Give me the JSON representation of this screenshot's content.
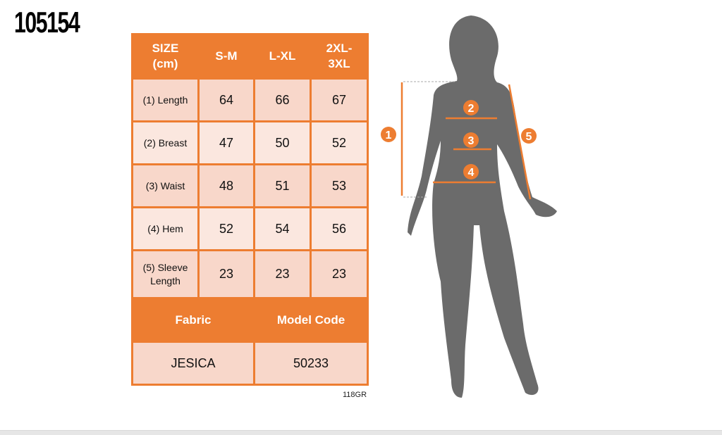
{
  "product_code": "105154",
  "table": {
    "headers": [
      "SIZE (cm)",
      "S-M",
      "L-XL",
      "2XL-3XL"
    ],
    "rows": [
      {
        "label": "(1) Length",
        "values": [
          "64",
          "66",
          "67"
        ]
      },
      {
        "label": "(2) Breast",
        "values": [
          "47",
          "50",
          "52"
        ]
      },
      {
        "label": "(3) Waist",
        "values": [
          "48",
          "51",
          "53"
        ]
      },
      {
        "label": "(4) Hem",
        "values": [
          "52",
          "54",
          "56"
        ]
      },
      {
        "label": "(5) Sleeve Length",
        "values": [
          "23",
          "23",
          "23"
        ]
      }
    ],
    "fabric_label": "Fabric",
    "model_code_label": "Model Code",
    "fabric": "JESICA",
    "model_code": "50233"
  },
  "footnote": "118GR",
  "figure": {
    "markers": [
      "1",
      "2",
      "3",
      "4",
      "5"
    ]
  },
  "colors": {
    "accent": "#ed7d31",
    "cell": "#f8d7ca",
    "silhouette": "#6b6b6b"
  }
}
